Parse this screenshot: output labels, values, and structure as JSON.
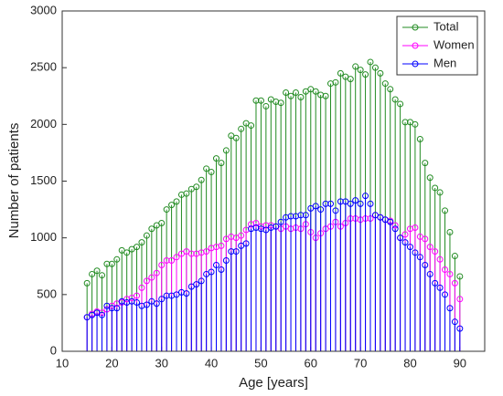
{
  "chart_data": {
    "type": "stem",
    "xlabel": "Age [years]",
    "ylabel": "Number of patients",
    "x": [
      15,
      16,
      17,
      18,
      19,
      20,
      21,
      22,
      23,
      24,
      25,
      26,
      27,
      28,
      29,
      30,
      31,
      32,
      33,
      34,
      35,
      36,
      37,
      38,
      39,
      40,
      41,
      42,
      43,
      44,
      45,
      46,
      47,
      48,
      49,
      50,
      51,
      52,
      53,
      54,
      55,
      56,
      57,
      58,
      59,
      60,
      61,
      62,
      63,
      64,
      65,
      66,
      67,
      68,
      69,
      70,
      71,
      72,
      73,
      74,
      75,
      76,
      77,
      78,
      79,
      80,
      81,
      82,
      83,
      84,
      85,
      86,
      87,
      88,
      89,
      90
    ],
    "series": [
      {
        "name": "Total",
        "color": "#228b22",
        "values": [
          600,
          680,
          710,
          670,
          770,
          770,
          810,
          890,
          870,
          900,
          920,
          960,
          1020,
          1080,
          1110,
          1130,
          1250,
          1290,
          1320,
          1380,
          1390,
          1430,
          1450,
          1510,
          1610,
          1580,
          1700,
          1660,
          1770,
          1900,
          1880,
          1960,
          2010,
          1990,
          2210,
          2210,
          2160,
          2220,
          2200,
          2190,
          2280,
          2250,
          2280,
          2240,
          2290,
          2310,
          2290,
          2260,
          2250,
          2360,
          2370,
          2450,
          2420,
          2400,
          2510,
          2480,
          2440,
          2550,
          2500,
          2450,
          2360,
          2310,
          2220,
          2180,
          2020,
          2020,
          2000,
          1870,
          1660,
          1530,
          1440,
          1400,
          1240,
          1050,
          840,
          660
        ]
      },
      {
        "name": "Women",
        "color": "#ff00ff",
        "values": [
          300,
          330,
          350,
          340,
          370,
          400,
          420,
          430,
          460,
          470,
          490,
          560,
          620,
          650,
          690,
          760,
          800,
          800,
          830,
          860,
          880,
          860,
          860,
          870,
          880,
          910,
          920,
          930,
          990,
          1010,
          1000,
          1020,
          1070,
          1120,
          1130,
          1100,
          1110,
          1110,
          1100,
          1080,
          1100,
          1080,
          1090,
          1080,
          1120,
          1050,
          1000,
          1040,
          1080,
          1100,
          1140,
          1100,
          1130,
          1170,
          1170,
          1160,
          1170,
          1170,
          1200,
          1180,
          1160,
          1150,
          1110,
          1000,
          1030,
          1080,
          1090,
          1010,
          990,
          920,
          880,
          810,
          720,
          680,
          600,
          460
        ]
      },
      {
        "name": "Men",
        "color": "#0000ff",
        "values": [
          300,
          320,
          340,
          320,
          400,
          380,
          380,
          440,
          430,
          440,
          430,
          400,
          410,
          440,
          420,
          460,
          490,
          490,
          500,
          520,
          510,
          570,
          590,
          620,
          680,
          700,
          760,
          720,
          800,
          880,
          880,
          930,
          950,
          1080,
          1090,
          1080,
          1070,
          1090,
          1100,
          1140,
          1180,
          1190,
          1190,
          1200,
          1200,
          1260,
          1280,
          1250,
          1300,
          1300,
          1240,
          1320,
          1320,
          1300,
          1330,
          1300,
          1370,
          1300,
          1200,
          1180,
          1160,
          1140,
          1080,
          1000,
          960,
          920,
          870,
          830,
          760,
          680,
          600,
          560,
          500,
          380,
          260,
          200
        ]
      }
    ],
    "xlim": [
      10,
      95
    ],
    "xticks": [
      10,
      20,
      30,
      40,
      50,
      60,
      70,
      80,
      90
    ],
    "ylim": [
      0,
      3000
    ],
    "yticks": [
      0,
      500,
      1000,
      1500,
      2000,
      2500,
      3000
    ],
    "legend": "top-right"
  }
}
